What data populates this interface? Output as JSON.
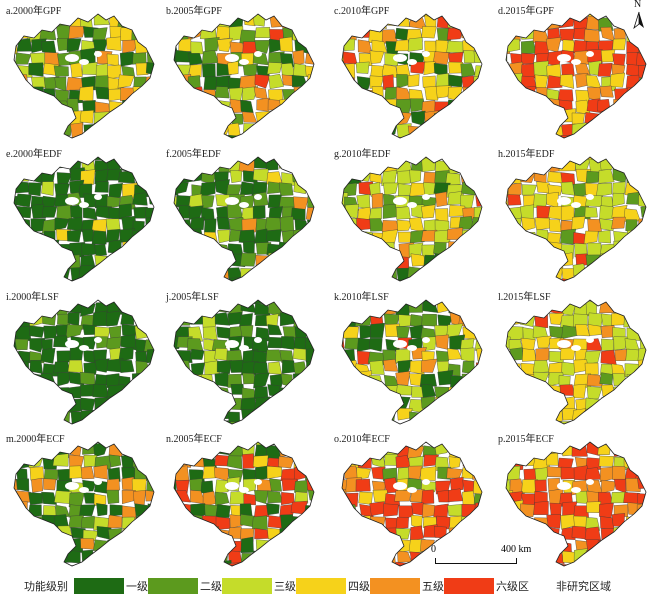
{
  "panels": [
    {
      "label": "a.2000年GPF",
      "level_mix": [
        4,
        3,
        3,
        3,
        2,
        1
      ]
    },
    {
      "label": "b.2005年GPF",
      "level_mix": [
        3,
        3,
        3,
        3,
        3,
        1
      ]
    },
    {
      "label": "c.2010年GPF",
      "level_mix": [
        2,
        2,
        3,
        4,
        3,
        2
      ]
    },
    {
      "label": "d.2015年GPF",
      "level_mix": [
        0,
        1,
        2,
        3,
        4,
        6
      ]
    },
    {
      "label": "e.2000年EDF",
      "level_mix": [
        12,
        2,
        1,
        1,
        0,
        0
      ]
    },
    {
      "label": "f.2005年EDF",
      "level_mix": [
        8,
        4,
        2,
        1,
        1,
        0
      ]
    },
    {
      "label": "g.2010年EDF",
      "level_mix": [
        1,
        3,
        6,
        3,
        2,
        1
      ]
    },
    {
      "label": "h.2015年EDF",
      "level_mix": [
        0,
        2,
        6,
        4,
        3,
        1
      ]
    },
    {
      "label": "i.2000年LSF",
      "level_mix": [
        12,
        3,
        1,
        0,
        0,
        0
      ]
    },
    {
      "label": "j.2005年LSF",
      "level_mix": [
        9,
        5,
        2,
        0,
        0,
        0
      ]
    },
    {
      "label": "k.2010年LSF",
      "level_mix": [
        4,
        4,
        3,
        3,
        1,
        1
      ]
    },
    {
      "label": "l.2015年LSF",
      "level_mix": [
        0,
        1,
        7,
        5,
        2,
        1
      ]
    },
    {
      "label": "m.2000年ECF",
      "level_mix": [
        6,
        4,
        2,
        1,
        3,
        0
      ]
    },
    {
      "label": "n.2005年ECF",
      "level_mix": [
        4,
        4,
        2,
        1,
        2,
        3
      ]
    },
    {
      "label": "o.2010年ECF",
      "level_mix": [
        0,
        1,
        2,
        4,
        4,
        5
      ]
    },
    {
      "label": "p.2015年ECF",
      "level_mix": [
        0,
        0,
        2,
        3,
        4,
        7
      ]
    }
  ],
  "north": {
    "letter": "N"
  },
  "scale": {
    "start": "0",
    "end": "400 km"
  },
  "legend": {
    "title": "功能级别",
    "items": [
      {
        "label": "一级区",
        "color": "#1e6b14"
      },
      {
        "label": "二级区",
        "color": "#5c9a1e"
      },
      {
        "label": "三级区",
        "color": "#c5dc2a"
      },
      {
        "label": "四级区",
        "color": "#f6d21a"
      },
      {
        "label": "五级区",
        "color": "#f39121"
      },
      {
        "label": "六级区",
        "color": "#f03c16"
      }
    ],
    "no_study": "非研究区域"
  }
}
